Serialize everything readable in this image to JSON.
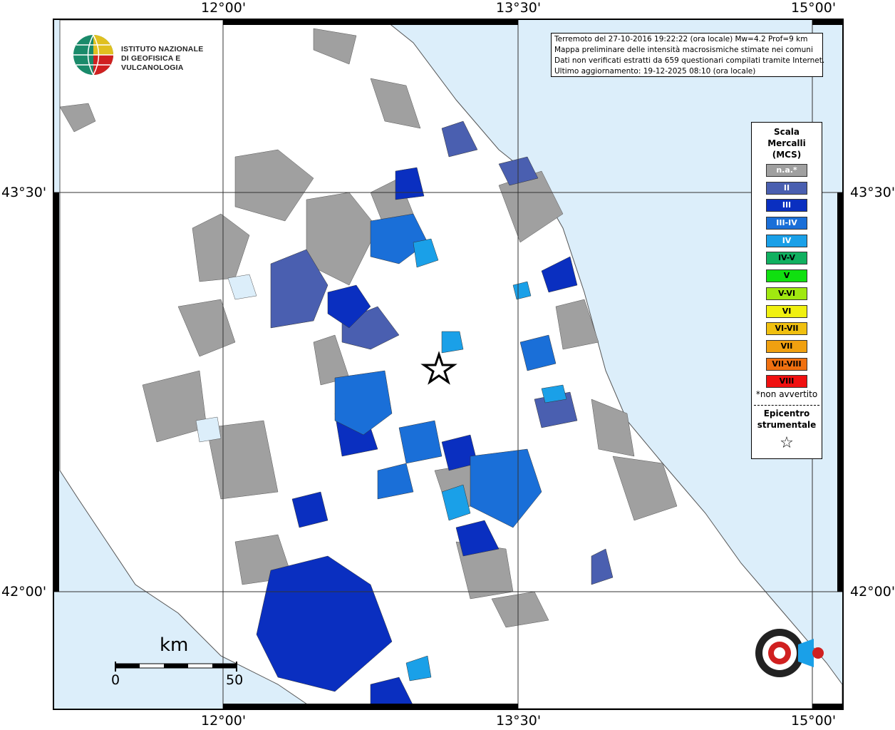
{
  "coords": {
    "top": [
      "12°00'",
      "13°30'",
      "15°00'"
    ],
    "bottom": [
      "12°00'",
      "13°30'",
      "15°00'"
    ],
    "left": [
      "43°30'",
      "42°00'"
    ],
    "right": [
      "43°30'",
      "42°00'"
    ]
  },
  "info": {
    "line1": "Terremoto del 27-10-2016 19:22:22 (ora locale) Mw=4.2 Prof=9 km",
    "line2": "Mappa preliminare delle intensità macrosismiche stimate nei comuni",
    "line3": "Dati non verificati estratti da 659 questionari compilati tramite Internet.",
    "line4": "Ultimo aggiornamento: 19-12-2025 08:10 (ora locale)"
  },
  "institute": {
    "line1": "ISTITUTO NAZIONALE",
    "line2": "DI GEOFISICA E VULCANOLOGIA"
  },
  "legend": {
    "title1": "Scala",
    "title2": "Mercalli",
    "title3": "(MCS)",
    "items": [
      {
        "label": "n.a.*",
        "color": "#a0a0a0",
        "text": "#ffffff"
      },
      {
        "label": "II",
        "color": "#4a5fb0",
        "text": "#ffffff"
      },
      {
        "label": "III",
        "color": "#0a2fc0",
        "text": "#ffffff"
      },
      {
        "label": "III-IV",
        "color": "#1a6fd8",
        "text": "#ffffff"
      },
      {
        "label": "IV",
        "color": "#1aa0e8",
        "text": "#ffffff"
      },
      {
        "label": "IV-V",
        "color": "#10b060",
        "text": "#000000"
      },
      {
        "label": "V",
        "color": "#10e010",
        "text": "#000000"
      },
      {
        "label": "V-VI",
        "color": "#a0e810",
        "text": "#000000"
      },
      {
        "label": "VI",
        "color": "#f0f010",
        "text": "#000000"
      },
      {
        "label": "VI-VII",
        "color": "#f0c010",
        "text": "#000000"
      },
      {
        "label": "VII",
        "color": "#f0a010",
        "text": "#000000"
      },
      {
        "label": "VII-VIII",
        "color": "#f07010",
        "text": "#000000"
      },
      {
        "label": "VIII",
        "color": "#f01010",
        "text": "#000000"
      }
    ],
    "note": "*non avvertito",
    "epi1": "Epicentro",
    "epi2": "strumentale",
    "star": "☆"
  },
  "scale": {
    "unit": "km",
    "min": "0",
    "max": "50"
  },
  "brand": {
    "url": "www.haisentitoilterremoto.it"
  }
}
